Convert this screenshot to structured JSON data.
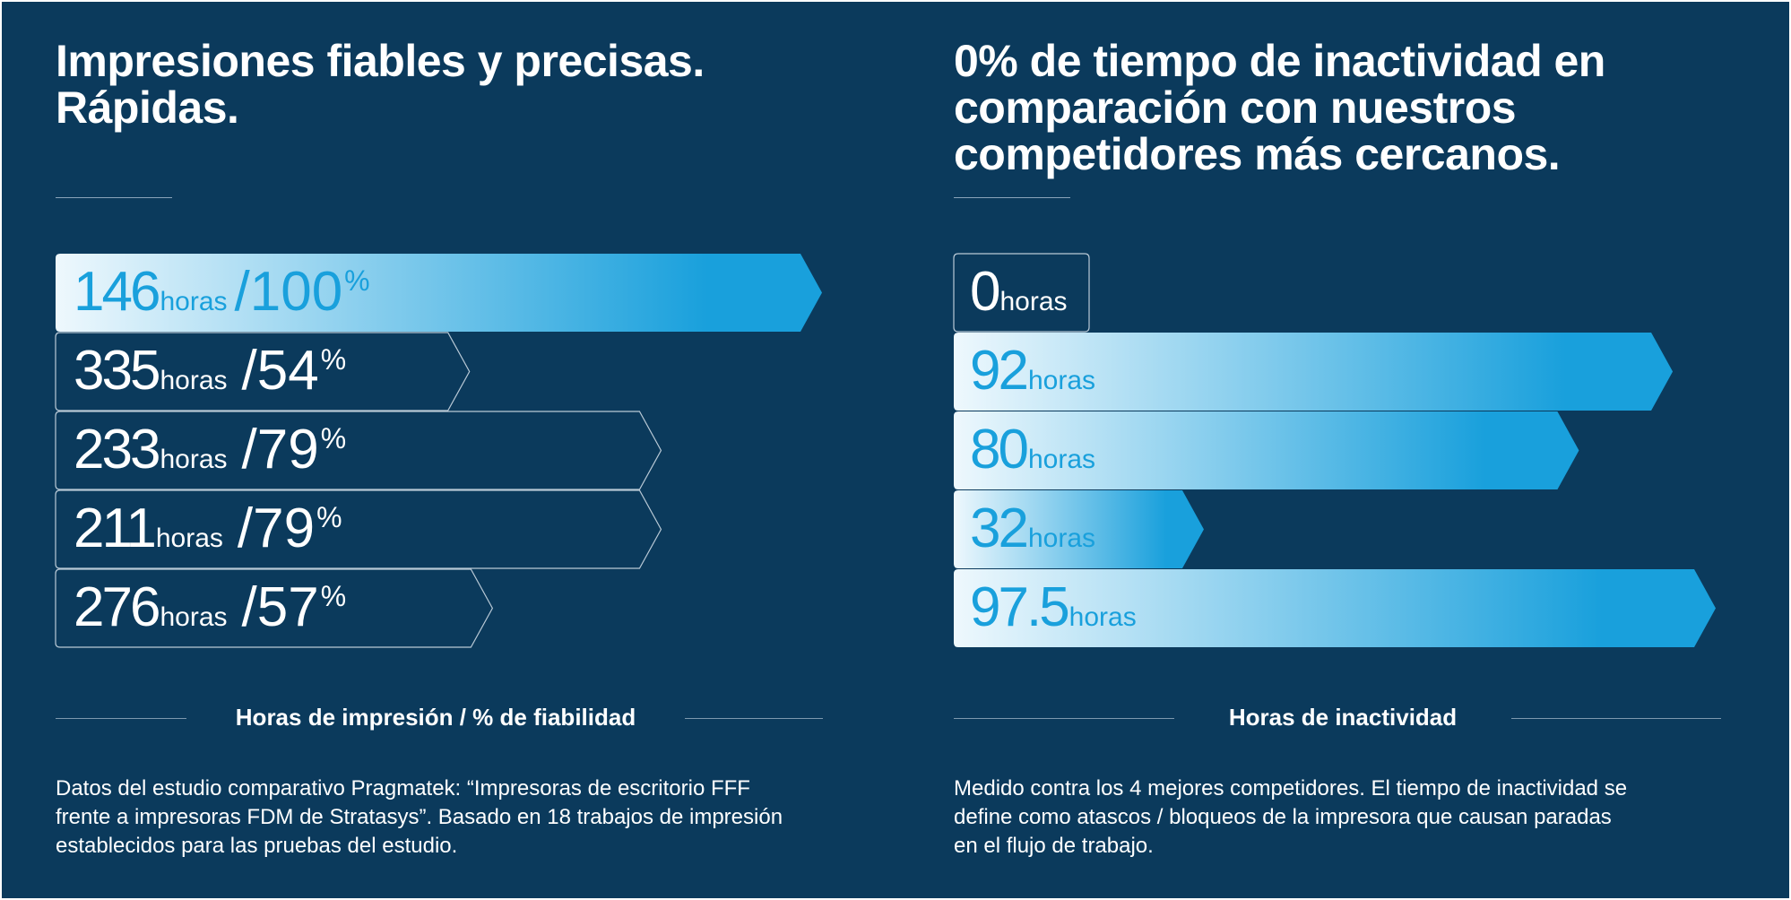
{
  "left_section": {
    "title_lines": [
      "Impresiones fiables y precisas.",
      "Rápidas."
    ],
    "caption": "Horas de impresión / % de fiabilidad",
    "footnote_lines": [
      "Datos del estudio comparativo Pragmatek: “Impresoras de escritorio FFF",
      "frente a impresoras FDM de Stratasys”. Basado en 18 trabajos de impresión",
      "establecidos para las pruebas del estudio."
    ]
  },
  "right_section": {
    "title_lines": [
      "0% de tiempo de inactividad en",
      "comparación con nuestros",
      "competidores más cercanos."
    ],
    "caption": "Horas de inactividad",
    "footnote_lines": [
      "Medido contra los 4 mejores competidores. El tiempo de inactividad se",
      "define como atascos / bloqueos de la impresora que causan paradas",
      "en el flujo de trabajo."
    ]
  },
  "colors": {
    "background": "#0b3a5c",
    "accent": "#19a0dc",
    "highlight_start": "#eef8fd",
    "outline": "#b9c9d6",
    "text": "#ffffff"
  },
  "chart_data": [
    {
      "type": "bar",
      "orientation": "horizontal",
      "xlabel": "Horas de impresión / % de fiabilidad",
      "series": [
        {
          "name": "horas",
          "unit": "horas",
          "values": [
            146,
            335,
            233,
            211,
            276
          ]
        },
        {
          "name": "%",
          "unit": "%",
          "values": [
            100,
            54,
            79,
            79,
            57
          ]
        }
      ],
      "value_labels": [
        "146",
        "335",
        "233",
        "211",
        "276"
      ],
      "percent_labels": [
        "100",
        "54",
        "79",
        "79",
        "57"
      ],
      "hours_unit": "horas",
      "percent_unit": "%",
      "bar_length_basis": "percent",
      "highlighted_index": 0,
      "xlim": [
        0,
        100
      ]
    },
    {
      "type": "bar",
      "orientation": "horizontal",
      "xlabel": "Horas de inactividad",
      "series": [
        {
          "name": "horas",
          "unit": "horas",
          "values": [
            0,
            92,
            80,
            32,
            97.5
          ]
        }
      ],
      "value_labels": [
        "0",
        "92",
        "80",
        "32",
        "97.5"
      ],
      "hours_unit": "horas",
      "outlined_index": 0,
      "xlim": [
        0,
        97.5
      ]
    }
  ]
}
